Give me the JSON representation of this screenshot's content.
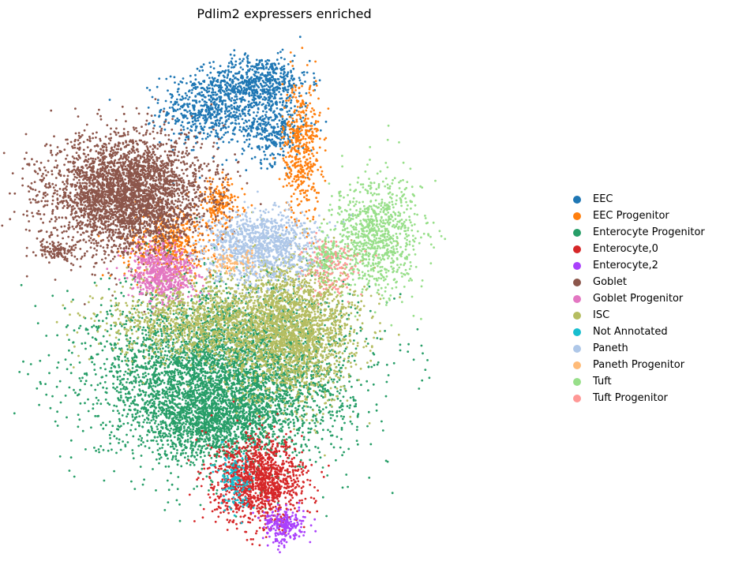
{
  "chart_data": {
    "type": "scatter",
    "title": "Pdlim2 expressers enriched",
    "xlabel": "",
    "ylabel": "",
    "axes_visible": false,
    "grid": false,
    "legend_position": "right",
    "xlim": [
      0,
      100
    ],
    "ylim": [
      0,
      100
    ],
    "series": [
      {
        "name": "EEC",
        "color": "#1f77b4",
        "clusters": [
          {
            "cx": 36.3,
            "cy": 85.9,
            "sx": 4.9,
            "sy": 3.3,
            "n": 650
          },
          {
            "cx": 45.3,
            "cy": 90.8,
            "sx": 4.7,
            "sy": 2.4,
            "n": 550
          },
          {
            "cx": 48.1,
            "cy": 82.1,
            "sx": 3.1,
            "sy": 3.1,
            "n": 350
          }
        ]
      },
      {
        "name": "EEC Progenitor",
        "color": "#ff7f0e",
        "clusters": [
          {
            "cx": 53.3,
            "cy": 78.3,
            "sx": 1.8,
            "sy": 6.5,
            "n": 450
          },
          {
            "cx": 28.2,
            "cy": 60.9,
            "sx": 4.3,
            "sy": 3.3,
            "n": 500
          },
          {
            "cx": 37.5,
            "cy": 68.5,
            "sx": 2.2,
            "sy": 2.2,
            "n": 180
          }
        ]
      },
      {
        "name": "Enterocyte Progenitor",
        "color": "#279e68",
        "clusters": [
          {
            "cx": 38.3,
            "cy": 37.0,
            "sx": 12.0,
            "sy": 7.6,
            "n": 4500
          },
          {
            "cx": 36.3,
            "cy": 28.3,
            "sx": 6.5,
            "sy": 3.3,
            "n": 1000
          }
        ]
      },
      {
        "name": "Enterocyte,0",
        "color": "#d62728",
        "clusters": [
          {
            "cx": 45.3,
            "cy": 17.4,
            "sx": 4.3,
            "sy": 3.8,
            "n": 1300
          }
        ]
      },
      {
        "name": "Enterocyte,2",
        "color": "#aa40fc",
        "clusters": [
          {
            "cx": 50.0,
            "cy": 9.3,
            "sx": 2.0,
            "sy": 1.6,
            "n": 240
          }
        ]
      },
      {
        "name": "Goblet",
        "color": "#8c564b",
        "clusters": [
          {
            "cx": 20.0,
            "cy": 70.0,
            "sx": 7.6,
            "sy": 5.4,
            "n": 3500
          },
          {
            "cx": 6.5,
            "cy": 59.8,
            "sx": 2.0,
            "sy": 0.8,
            "n": 120
          }
        ]
      },
      {
        "name": "Goblet Progenitor",
        "color": "#e377c2",
        "clusters": [
          {
            "cx": 27.0,
            "cy": 55.4,
            "sx": 3.1,
            "sy": 2.5,
            "n": 600
          }
        ]
      },
      {
        "name": "ISC",
        "color": "#b5bd61",
        "clusters": [
          {
            "cx": 51.6,
            "cy": 45.7,
            "sx": 6.0,
            "sy": 6.5,
            "n": 2200
          },
          {
            "cx": 34.0,
            "cy": 46.7,
            "sx": 9.0,
            "sy": 3.8,
            "n": 1200
          }
        ]
      },
      {
        "name": "Not Annotated",
        "color": "#17becf",
        "clusters": [
          {
            "cx": 40.6,
            "cy": 17.4,
            "sx": 1.5,
            "sy": 2.7,
            "n": 130
          }
        ]
      },
      {
        "name": "Paneth",
        "color": "#aec7e8",
        "clusters": [
          {
            "cx": 45.5,
            "cy": 60.3,
            "sx": 5.3,
            "sy": 3.3,
            "n": 1100
          }
        ]
      },
      {
        "name": "Paneth Progenitor",
        "color": "#ffbb78",
        "clusters": [
          {
            "cx": 39.6,
            "cy": 57.6,
            "sx": 2.0,
            "sy": 1.1,
            "n": 80
          }
        ]
      },
      {
        "name": "Tuft",
        "color": "#98df8a",
        "clusters": [
          {
            "cx": 67.6,
            "cy": 62.5,
            "sx": 4.3,
            "sy": 5.4,
            "n": 900
          },
          {
            "cx": 58.5,
            "cy": 58.7,
            "sx": 1.3,
            "sy": 1.8,
            "n": 120
          }
        ]
      },
      {
        "name": "Tuft Progenitor",
        "color": "#ff9896",
        "clusters": [
          {
            "cx": 58.8,
            "cy": 56.5,
            "sx": 2.4,
            "sy": 2.7,
            "n": 130
          }
        ]
      }
    ]
  }
}
